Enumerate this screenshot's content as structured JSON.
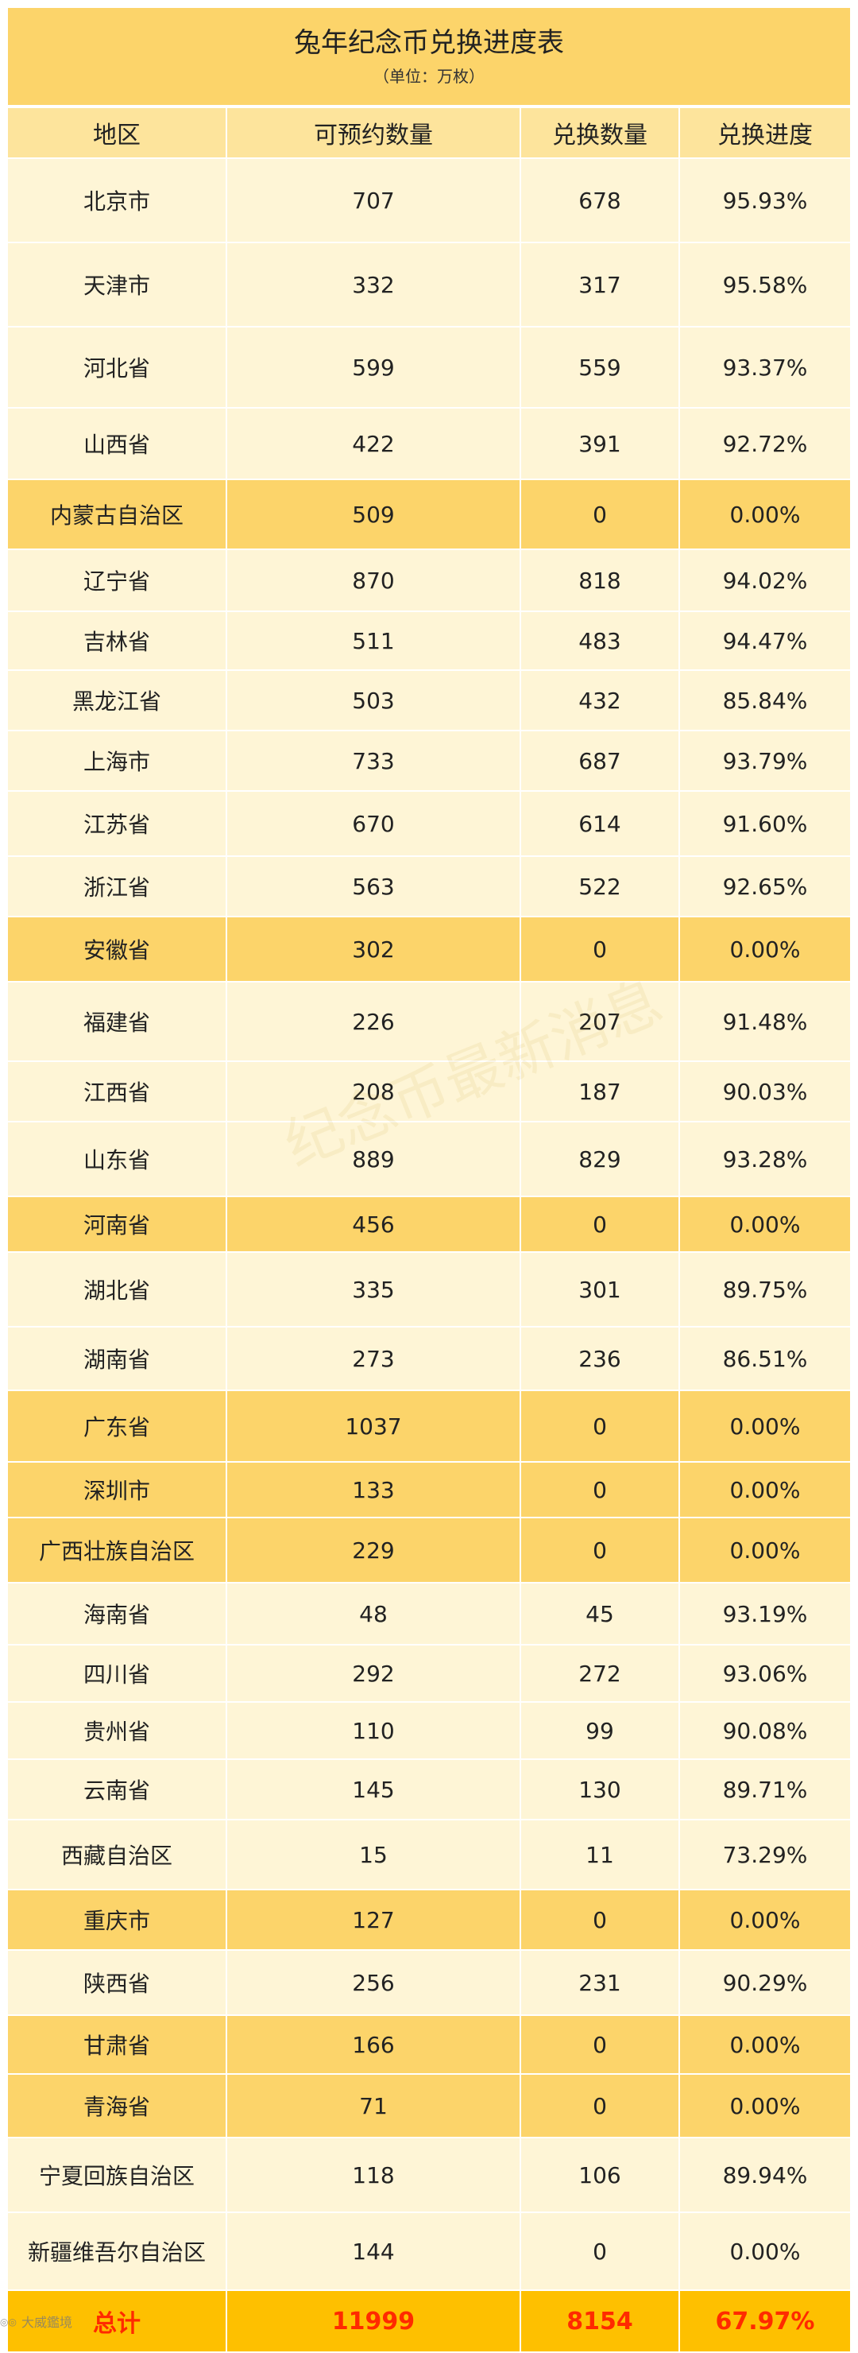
{
  "title": "兔年纪念币兑换进度表",
  "subtitle": "（单位：万枚）",
  "headers": [
    "地区",
    "可预约数量",
    "兑换数量",
    "兑换进度"
  ],
  "colors": {
    "header_bg": "#fde49c",
    "row_normal_bg": "#fef5d6",
    "row_highlight_bg": "#fcd46a",
    "total_bg": "#fec000",
    "total_text": "#ff2a00"
  },
  "rows": [
    {
      "region": "北京市",
      "reservable": "707",
      "exchanged": "678",
      "progress": "95.93%",
      "highlight": false,
      "height": 106
    },
    {
      "region": "天津市",
      "reservable": "332",
      "exchanged": "317",
      "progress": "95.58%",
      "highlight": false,
      "height": 106
    },
    {
      "region": "河北省",
      "reservable": "599",
      "exchanged": "559",
      "progress": "93.37%",
      "highlight": false,
      "height": 102
    },
    {
      "region": "山西省",
      "reservable": "422",
      "exchanged": "391",
      "progress": "92.72%",
      "highlight": false,
      "height": 90
    },
    {
      "region": "内蒙古自治区",
      "reservable": "509",
      "exchanged": "0",
      "progress": "0.00%",
      "highlight": true,
      "height": 88
    },
    {
      "region": "辽宁省",
      "reservable": "870",
      "exchanged": "818",
      "progress": "94.02%",
      "highlight": false,
      "height": 78
    },
    {
      "region": "吉林省",
      "reservable": "511",
      "exchanged": "483",
      "progress": "94.47%",
      "highlight": false,
      "height": 74
    },
    {
      "region": "黑龙江省",
      "reservable": "503",
      "exchanged": "432",
      "progress": "85.84%",
      "highlight": false,
      "height": 76
    },
    {
      "region": "上海市",
      "reservable": "733",
      "exchanged": "687",
      "progress": "93.79%",
      "highlight": false,
      "height": 76
    },
    {
      "region": "江苏省",
      "reservable": "670",
      "exchanged": "614",
      "progress": "91.60%",
      "highlight": false,
      "height": 82
    },
    {
      "region": "浙江省",
      "reservable": "563",
      "exchanged": "522",
      "progress": "92.65%",
      "highlight": false,
      "height": 76
    },
    {
      "region": "安徽省",
      "reservable": "302",
      "exchanged": "0",
      "progress": "0.00%",
      "highlight": true,
      "height": 82
    },
    {
      "region": "福建省",
      "reservable": "226",
      "exchanged": "207",
      "progress": "91.48%",
      "highlight": false,
      "height": 100
    },
    {
      "region": "江西省",
      "reservable": "208",
      "exchanged": "187",
      "progress": "90.03%",
      "highlight": false,
      "height": 76
    },
    {
      "region": "山东省",
      "reservable": "889",
      "exchanged": "829",
      "progress": "93.28%",
      "highlight": false,
      "height": 94
    },
    {
      "region": "河南省",
      "reservable": "456",
      "exchanged": "0",
      "progress": "0.00%",
      "highlight": true,
      "height": 70
    },
    {
      "region": "湖北省",
      "reservable": "335",
      "exchanged": "301",
      "progress": "89.75%",
      "highlight": false,
      "height": 94
    },
    {
      "region": "湖南省",
      "reservable": "273",
      "exchanged": "236",
      "progress": "86.51%",
      "highlight": false,
      "height": 80
    },
    {
      "region": "广东省",
      "reservable": "1037",
      "exchanged": "0",
      "progress": "0.00%",
      "highlight": true,
      "height": 90
    },
    {
      "region": "深圳市",
      "reservable": "133",
      "exchanged": "0",
      "progress": "0.00%",
      "highlight": true,
      "height": 70
    },
    {
      "region": "广西壮族自治区",
      "reservable": "229",
      "exchanged": "0",
      "progress": "0.00%",
      "highlight": true,
      "height": 82
    },
    {
      "region": "海南省",
      "reservable": "48",
      "exchanged": "45",
      "progress": "93.19%",
      "highlight": false,
      "height": 78
    },
    {
      "region": "四川省",
      "reservable": "292",
      "exchanged": "272",
      "progress": "93.06%",
      "highlight": false,
      "height": 72
    },
    {
      "region": "贵州省",
      "reservable": "110",
      "exchanged": "99",
      "progress": "90.08%",
      "highlight": false,
      "height": 72
    },
    {
      "region": "云南省",
      "reservable": "145",
      "exchanged": "130",
      "progress": "89.71%",
      "highlight": false,
      "height": 76
    },
    {
      "region": "西藏自治区",
      "reservable": "15",
      "exchanged": "11",
      "progress": "73.29%",
      "highlight": false,
      "height": 88
    },
    {
      "region": "重庆市",
      "reservable": "127",
      "exchanged": "0",
      "progress": "0.00%",
      "highlight": true,
      "height": 76
    },
    {
      "region": "陕西省",
      "reservable": "256",
      "exchanged": "231",
      "progress": "90.29%",
      "highlight": false,
      "height": 82
    },
    {
      "region": "甘肃省",
      "reservable": "166",
      "exchanged": "0",
      "progress": "0.00%",
      "highlight": true,
      "height": 74
    },
    {
      "region": "青海省",
      "reservable": "71",
      "exchanged": "0",
      "progress": "0.00%",
      "highlight": true,
      "height": 80
    },
    {
      "region": "宁夏回族自治区",
      "reservable": "118",
      "exchanged": "106",
      "progress": "89.94%",
      "highlight": false,
      "height": 94
    },
    {
      "region": "新疆维吾尔自治区",
      "reservable": "144",
      "exchanged": "0",
      "progress": "0.00%",
      "highlight": false,
      "height": 98
    }
  ],
  "total": {
    "label": "总计",
    "reservable": "11999",
    "exchanged": "8154",
    "progress": "67.97%"
  },
  "watermark": "纪念币最新消息",
  "footer_logo": "大威鑑境"
}
